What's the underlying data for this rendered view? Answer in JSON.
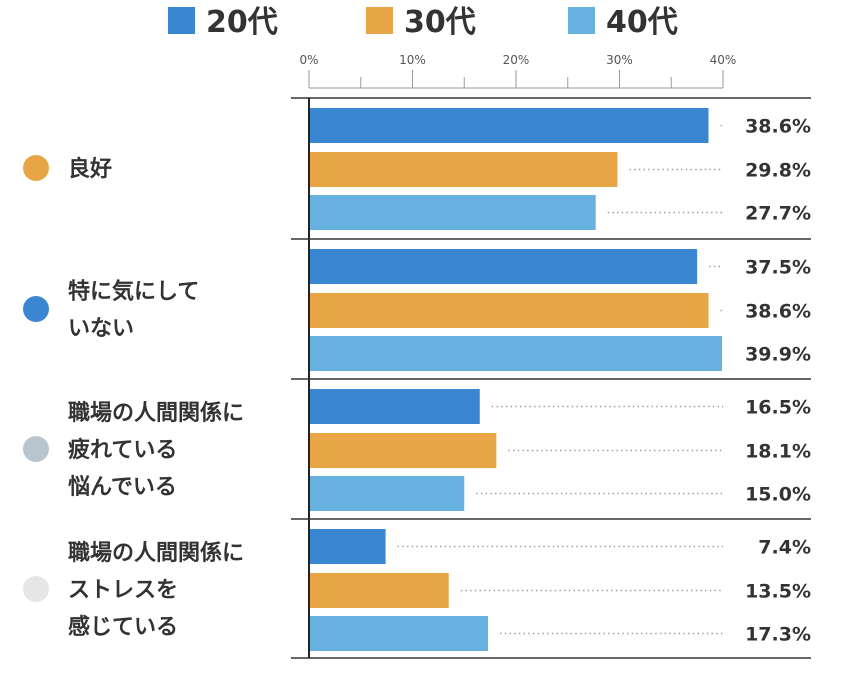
{
  "chart_data": {
    "type": "bar",
    "orientation": "horizontal",
    "legend_position": "top",
    "xlim": [
      0,
      40
    ],
    "x_tick_labels": [
      "0%",
      "10%",
      "20%",
      "30%",
      "40%"
    ],
    "x_ticks": [
      0,
      10,
      20,
      30,
      40
    ],
    "series": [
      {
        "name": "20代",
        "color": "#3a86d1"
      },
      {
        "name": "30代",
        "color": "#e8a545"
      },
      {
        "name": "40代",
        "color": "#66b1df"
      }
    ],
    "categories": [
      {
        "lines": [
          "良好"
        ],
        "dot_color": "#e8a545",
        "values": [
          38.6,
          29.8,
          27.7
        ],
        "value_labels": [
          "38.6%",
          "29.8%",
          "27.7%"
        ]
      },
      {
        "lines": [
          "特に気にして",
          "いない"
        ],
        "dot_color": "#3a86d1",
        "values": [
          37.5,
          38.6,
          39.9
        ],
        "value_labels": [
          "37.5%",
          "38.6%",
          "39.9%"
        ]
      },
      {
        "lines": [
          "職場の人間関係に",
          "疲れている",
          "悩んでいる"
        ],
        "dot_color": "#b8c5cf",
        "values": [
          16.5,
          18.1,
          15.0
        ],
        "value_labels": [
          "16.5%",
          "18.1%",
          "15.0%"
        ]
      },
      {
        "lines": [
          "職場の人間関係に",
          "ストレスを",
          "感じている"
        ],
        "dot_color": "#e6e6e6",
        "values": [
          7.4,
          13.5,
          17.3
        ],
        "value_labels": [
          "7.4%",
          "13.5%",
          "17.3%"
        ]
      }
    ]
  }
}
